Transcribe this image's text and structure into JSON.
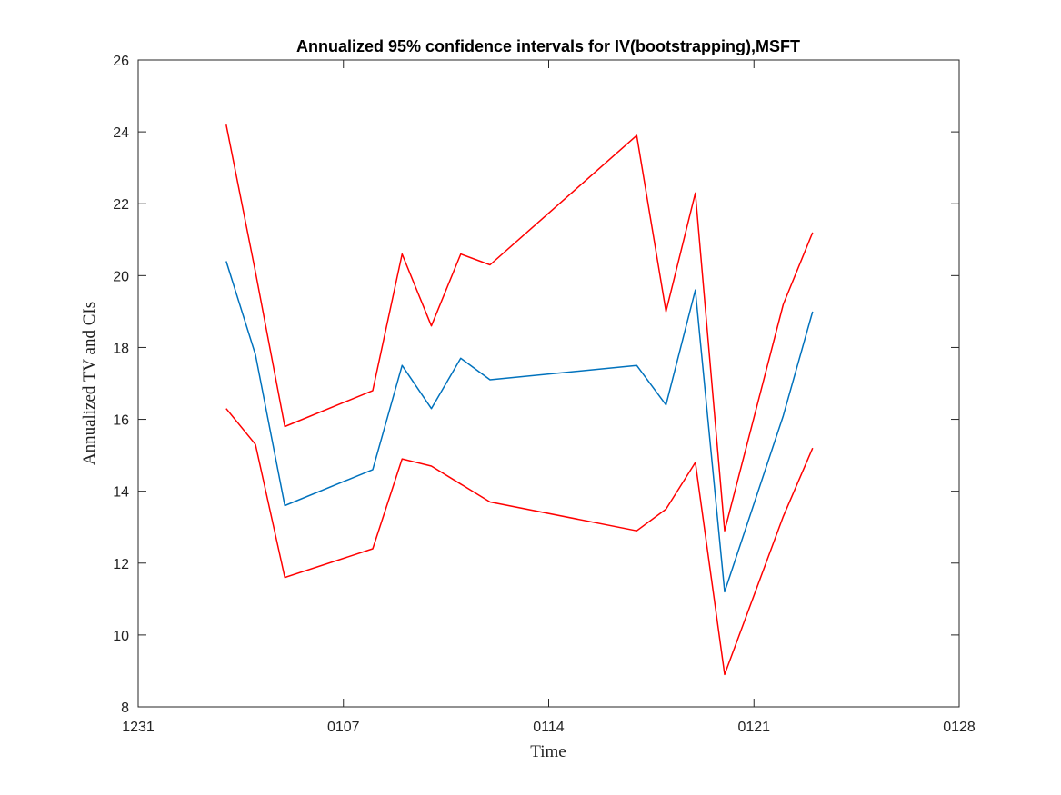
{
  "chart_data": {
    "type": "line",
    "title": "Annualized 95% confidence intervals for IV(bootstrapping),MSFT",
    "xlabel": "Time",
    "ylabel": "Annualized TV and CIs",
    "x_axis_type": "date",
    "xlim": [
      "2018-12-31",
      "2019-01-28"
    ],
    "x_ticks": [
      "2018-12-31",
      "2019-01-07",
      "2019-01-14",
      "2019-01-21",
      "2019-01-28"
    ],
    "x_tick_labels": [
      "1231",
      "0107",
      "0114",
      "0121",
      "0128"
    ],
    "ylim": [
      8,
      26
    ],
    "y_ticks": [
      8,
      10,
      12,
      14,
      16,
      18,
      20,
      22,
      24,
      26
    ],
    "y_tick_labels": [
      "8",
      "10",
      "12",
      "14",
      "16",
      "18",
      "20",
      "22",
      "24",
      "26"
    ],
    "grid": false,
    "legend": "none",
    "x": [
      "2019-01-03",
      "2019-01-04",
      "2019-01-05",
      "2019-01-08",
      "2019-01-09",
      "2019-01-10",
      "2019-01-11",
      "2019-01-12",
      "2019-01-17",
      "2019-01-18",
      "2019-01-19",
      "2019-01-20",
      "2019-01-22",
      "2019-01-23"
    ],
    "series": [
      {
        "color": "#FF0000",
        "values": [
          24.2,
          20.1,
          15.8,
          16.8,
          20.6,
          18.6,
          20.6,
          20.3,
          23.9,
          19.0,
          22.3,
          12.9,
          19.2,
          21.2
        ]
      },
      {
        "color": "#0072BD",
        "values": [
          20.4,
          17.8,
          13.6,
          14.6,
          17.5,
          16.3,
          17.7,
          17.1,
          17.5,
          16.4,
          19.6,
          11.2,
          16.1,
          19.0
        ]
      },
      {
        "color": "#FF0000",
        "values": [
          16.3,
          15.3,
          11.6,
          12.4,
          14.9,
          14.7,
          14.2,
          13.7,
          12.9,
          13.5,
          14.8,
          8.9,
          13.3,
          15.2
        ]
      }
    ]
  }
}
